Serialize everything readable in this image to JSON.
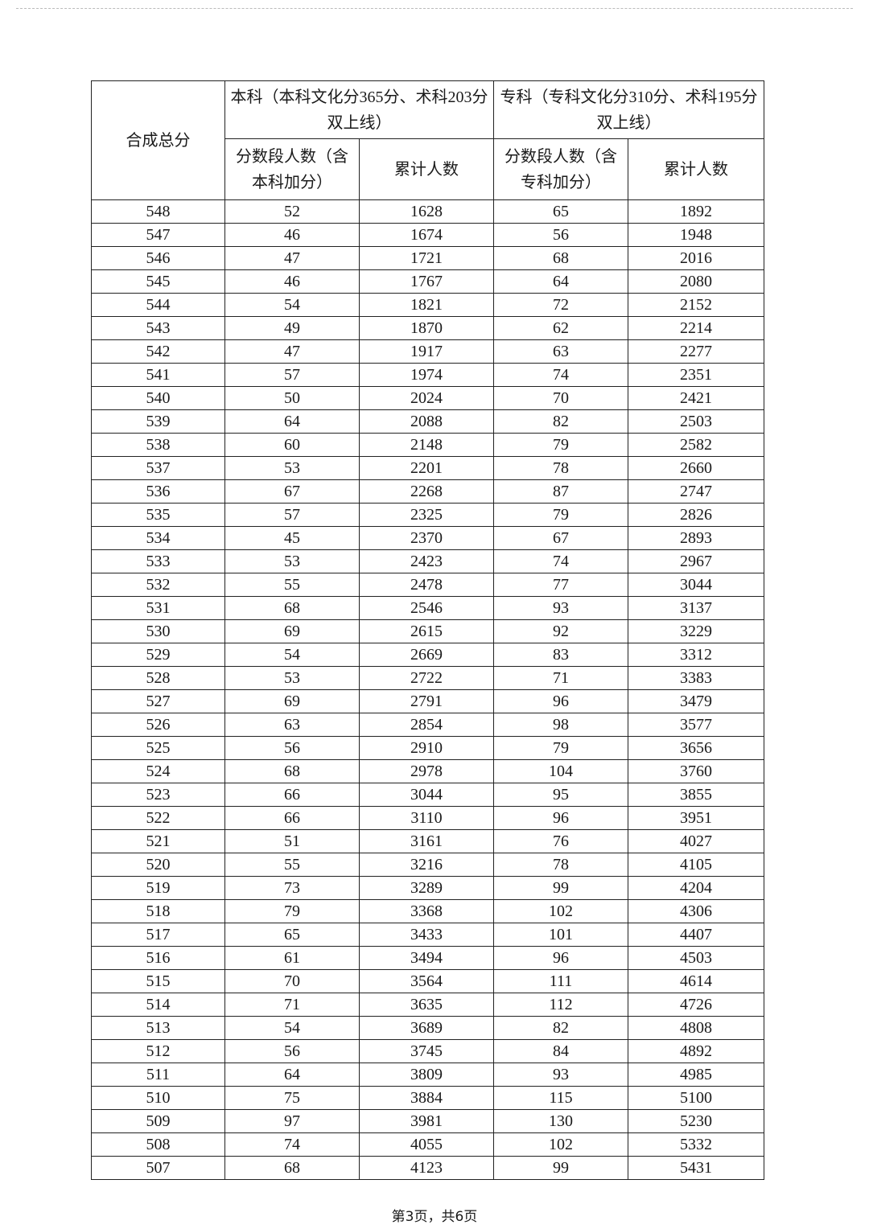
{
  "table": {
    "header": {
      "total_score": "合成总分",
      "undergrad_group": "本科（本科文化分365分、术科203分双上线）",
      "college_group": "专科（专科文化分310分、术科195分双上线）",
      "undergrad_count": "分数段人数（含本科加分）",
      "undergrad_cumulative": "累计人数",
      "college_count": "分数段人数（含专科加分）",
      "college_cumulative": "累计人数"
    },
    "rows": [
      [
        "548",
        "52",
        "1628",
        "65",
        "1892"
      ],
      [
        "547",
        "46",
        "1674",
        "56",
        "1948"
      ],
      [
        "546",
        "47",
        "1721",
        "68",
        "2016"
      ],
      [
        "545",
        "46",
        "1767",
        "64",
        "2080"
      ],
      [
        "544",
        "54",
        "1821",
        "72",
        "2152"
      ],
      [
        "543",
        "49",
        "1870",
        "62",
        "2214"
      ],
      [
        "542",
        "47",
        "1917",
        "63",
        "2277"
      ],
      [
        "541",
        "57",
        "1974",
        "74",
        "2351"
      ],
      [
        "540",
        "50",
        "2024",
        "70",
        "2421"
      ],
      [
        "539",
        "64",
        "2088",
        "82",
        "2503"
      ],
      [
        "538",
        "60",
        "2148",
        "79",
        "2582"
      ],
      [
        "537",
        "53",
        "2201",
        "78",
        "2660"
      ],
      [
        "536",
        "67",
        "2268",
        "87",
        "2747"
      ],
      [
        "535",
        "57",
        "2325",
        "79",
        "2826"
      ],
      [
        "534",
        "45",
        "2370",
        "67",
        "2893"
      ],
      [
        "533",
        "53",
        "2423",
        "74",
        "2967"
      ],
      [
        "532",
        "55",
        "2478",
        "77",
        "3044"
      ],
      [
        "531",
        "68",
        "2546",
        "93",
        "3137"
      ],
      [
        "530",
        "69",
        "2615",
        "92",
        "3229"
      ],
      [
        "529",
        "54",
        "2669",
        "83",
        "3312"
      ],
      [
        "528",
        "53",
        "2722",
        "71",
        "3383"
      ],
      [
        "527",
        "69",
        "2791",
        "96",
        "3479"
      ],
      [
        "526",
        "63",
        "2854",
        "98",
        "3577"
      ],
      [
        "525",
        "56",
        "2910",
        "79",
        "3656"
      ],
      [
        "524",
        "68",
        "2978",
        "104",
        "3760"
      ],
      [
        "523",
        "66",
        "3044",
        "95",
        "3855"
      ],
      [
        "522",
        "66",
        "3110",
        "96",
        "3951"
      ],
      [
        "521",
        "51",
        "3161",
        "76",
        "4027"
      ],
      [
        "520",
        "55",
        "3216",
        "78",
        "4105"
      ],
      [
        "519",
        "73",
        "3289",
        "99",
        "4204"
      ],
      [
        "518",
        "79",
        "3368",
        "102",
        "4306"
      ],
      [
        "517",
        "65",
        "3433",
        "101",
        "4407"
      ],
      [
        "516",
        "61",
        "3494",
        "96",
        "4503"
      ],
      [
        "515",
        "70",
        "3564",
        "111",
        "4614"
      ],
      [
        "514",
        "71",
        "3635",
        "112",
        "4726"
      ],
      [
        "513",
        "54",
        "3689",
        "82",
        "4808"
      ],
      [
        "512",
        "56",
        "3745",
        "84",
        "4892"
      ],
      [
        "511",
        "64",
        "3809",
        "93",
        "4985"
      ],
      [
        "510",
        "75",
        "3884",
        "115",
        "5100"
      ],
      [
        "509",
        "97",
        "3981",
        "130",
        "5230"
      ],
      [
        "508",
        "74",
        "4055",
        "102",
        "5332"
      ],
      [
        "507",
        "68",
        "4123",
        "99",
        "5431"
      ]
    ]
  },
  "footer": {
    "page_label": "第3页，共6页"
  }
}
